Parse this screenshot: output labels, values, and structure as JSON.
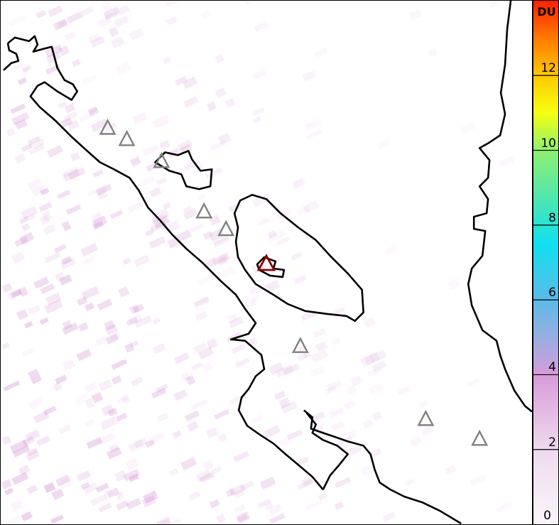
{
  "colorbar": {
    "unit": "DU",
    "min": 0,
    "max": 14,
    "ticks": [
      "0",
      "2",
      "4",
      "6",
      "8",
      "10",
      "12"
    ],
    "stops": [
      {
        "v": 0,
        "c": "#fbf5fb"
      },
      {
        "v": 2,
        "c": "#eedaef"
      },
      {
        "v": 4,
        "c": "#d89bd8"
      },
      {
        "v": 4.5,
        "c": "#b6a6df"
      },
      {
        "v": 6,
        "c": "#5cbbe8"
      },
      {
        "v": 7.5,
        "c": "#10e0ef"
      },
      {
        "v": 9,
        "c": "#5ee8a0"
      },
      {
        "v": 10,
        "c": "#90f070"
      },
      {
        "v": 11,
        "c": "#f6ff10"
      },
      {
        "v": 12,
        "c": "#ffc800"
      },
      {
        "v": 13,
        "c": "#ff7a00"
      },
      {
        "v": 14,
        "c": "#ff2000"
      }
    ]
  },
  "map": {
    "coastline_color": "#000000",
    "volcano_marker_color": "#808080",
    "highlighted_volcano_color": "#8b0000",
    "so2_pixel_color": "#c878c8"
  }
}
